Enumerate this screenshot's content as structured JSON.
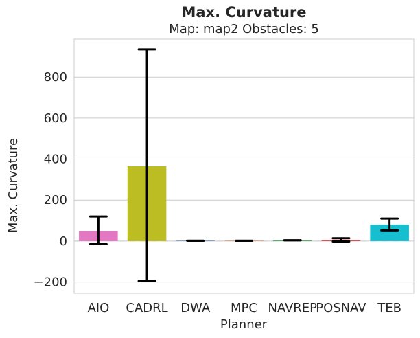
{
  "chart_data": {
    "type": "bar",
    "title": "Max. Curvature",
    "subtitle": "Map: map2 Obstacles: 5",
    "xlabel": "Planner",
    "ylabel": "Max. Curvature",
    "ylim": [
      -255,
      985
    ],
    "yticks": [
      -200,
      0,
      200,
      400,
      600,
      800
    ],
    "ytick_labels": [
      "−200",
      "0",
      "200",
      "400",
      "600",
      "800"
    ],
    "grid": "horizontal",
    "categories": [
      "AIO",
      "CADRL",
      "DWA",
      "MPC",
      "NAVREP",
      "POSNAV",
      "TEB"
    ],
    "values": [
      50,
      365,
      2,
      2,
      4,
      6,
      80
    ],
    "error_low": [
      -15,
      -195,
      2,
      2,
      4,
      -2,
      52
    ],
    "error_high": [
      120,
      935,
      2,
      2,
      4,
      14,
      110
    ],
    "colors": [
      "#E377C2",
      "#BCBD22",
      "#4C72B0",
      "#DD8452",
      "#55A868",
      "#C44E52",
      "#17BECF"
    ]
  }
}
